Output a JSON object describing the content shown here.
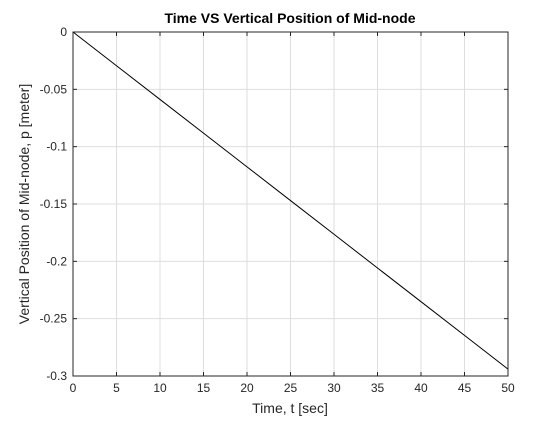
{
  "chart_data": {
    "type": "line",
    "title": "Time VS Vertical Position of Mid-node",
    "xlabel": "Time, t [sec]",
    "ylabel": "Vertical Position of Mid-node, p [meter]",
    "xlim": [
      0,
      50
    ],
    "ylim": [
      -0.3,
      0
    ],
    "xticks": [
      0,
      5,
      10,
      15,
      20,
      25,
      30,
      35,
      40,
      45,
      50
    ],
    "yticks": [
      0,
      -0.05,
      -0.1,
      -0.15,
      -0.2,
      -0.25,
      -0.3
    ],
    "xtick_labels": [
      "0",
      "5",
      "10",
      "15",
      "20",
      "25",
      "30",
      "35",
      "40",
      "45",
      "50"
    ],
    "ytick_labels": [
      "0",
      "-0.05",
      "-0.1",
      "-0.15",
      "-0.2",
      "-0.25",
      "-0.3"
    ],
    "grid": true,
    "legend": null,
    "series": [
      {
        "x": [
          0,
          5,
          10,
          15,
          20,
          25,
          30,
          35,
          40,
          45,
          50
        ],
        "y": [
          0,
          -0.0294,
          -0.0588,
          -0.0882,
          -0.1176,
          -0.147,
          -0.1764,
          -0.2058,
          -0.2352,
          -0.2646,
          -0.294
        ],
        "color": "#000000"
      }
    ],
    "colors": {
      "axes": "#262626",
      "grid": "#dedede",
      "line": "#000000",
      "background": "#ffffff"
    }
  }
}
